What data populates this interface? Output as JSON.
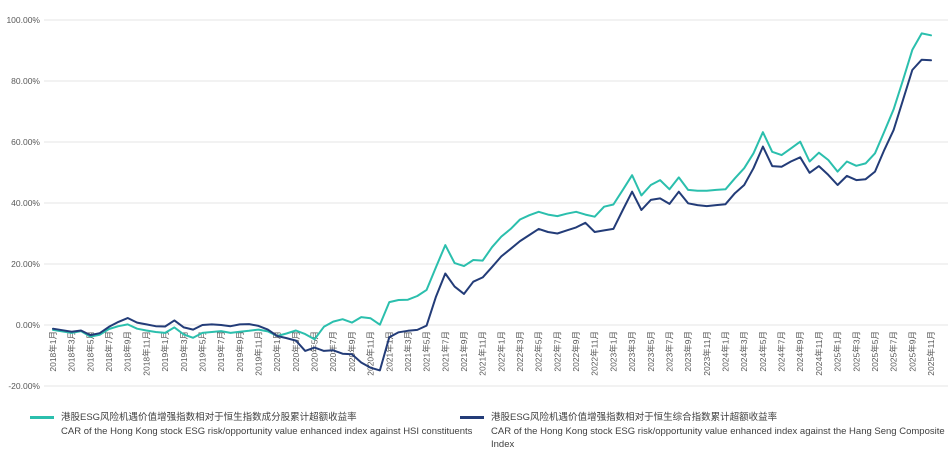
{
  "chart_data": {
    "type": "line",
    "title": "",
    "unit": "%",
    "ylim": [
      -20,
      100
    ],
    "grid": true,
    "grid_color": "#E4E4E4",
    "tick_color": "#595959",
    "legend_position": "bottom",
    "points_per_x_tick": 2,
    "y_ticks": [
      {
        "label": "100.00%",
        "value": 100
      },
      {
        "label": "80.00%",
        "value": 80
      },
      {
        "label": "60.00%",
        "value": 60
      },
      {
        "label": "40.00%",
        "value": 40
      },
      {
        "label": "20.00%",
        "value": 20
      },
      {
        "label": "0.00%",
        "value": 0
      },
      {
        "label": "-20.00%",
        "value": -20
      }
    ],
    "x_tick_labels": [
      "2018年1月",
      "2018年3月",
      "2018年5月",
      "2018年7月",
      "2018年9月",
      "2018年11月",
      "2019年1月",
      "2019年3月",
      "2019年5月",
      "2019年7月",
      "2019年9月",
      "2019年11月",
      "2020年1月",
      "2020年3月",
      "2020年5月",
      "2020年7月",
      "2020年9月",
      "2020年11月",
      "2021年1月",
      "2021年3月",
      "2021年5月",
      "2021年7月",
      "2021年9月",
      "2021年11月",
      "2022年1月",
      "2022年3月",
      "2022年5月",
      "2022年7月",
      "2022年9月",
      "2022年11月",
      "2023年1月",
      "2023年3月",
      "2023年5月",
      "2023年7月",
      "2023年9月",
      "2023年11月",
      "2024年1月",
      "2024年3月",
      "2024年5月",
      "2024年7月",
      "2024年9月",
      "2024年11月",
      "2025年1月",
      "2025年3月",
      "2025年5月",
      "2025年7月",
      "2025年9月",
      "2025年11月"
    ],
    "series": [
      {
        "name_zh": "港股ESG风险机遇价值增强指数相对于恒生指数成分股累计超额收益率",
        "name_en": "CAR of the Hong Kong stock ESG risk/opportunity value enhanced index against HSI constituents",
        "color": "#2BBFAD",
        "values": [
          -1.6,
          -2.1,
          -2.6,
          -2.0,
          -3.8,
          -3.2,
          -1.3,
          -0.4,
          0.2,
          -1.2,
          -1.8,
          -2.3,
          -2.6,
          -0.8,
          -3.1,
          -4.2,
          -2.6,
          -2.3,
          -2.0,
          -2.6,
          -2.2,
          -1.9,
          -1.5,
          -2.1,
          -3.6,
          -2.8,
          -1.8,
          -3.0,
          -4.7,
          -0.6,
          1.1,
          1.9,
          0.8,
          2.6,
          2.2,
          0.1,
          7.5,
          8.2,
          8.3,
          9.5,
          11.5,
          19.0,
          26.2,
          20.3,
          19.3,
          21.3,
          21.1,
          25.5,
          29.0,
          31.5,
          34.6,
          36.0,
          37.1,
          36.2,
          35.7,
          36.5,
          37.1,
          36.2,
          35.5,
          38.8,
          39.5,
          44.3,
          49.1,
          42.5,
          45.9,
          47.5,
          44.5,
          48.4,
          44.3,
          44.0,
          44.0,
          44.3,
          44.5,
          48.1,
          51.4,
          56.3,
          63.2,
          56.8,
          55.7,
          57.9,
          60.1,
          53.6,
          56.5,
          54.1,
          50.3,
          53.6,
          52.2,
          53.0,
          56.3,
          63.4,
          70.7,
          80.3,
          90.2,
          95.6,
          95.0
        ]
      },
      {
        "name_zh": "港股ESG风险机遇价值增强指数相对于恒生综合指数累计超额收益率",
        "name_en": "CAR of the Hong Kong stock ESG risk/opportunity value enhanced index against the Hang Seng Composite Index",
        "color": "#233C78",
        "values": [
          -1.2,
          -1.7,
          -2.2,
          -1.8,
          -3.3,
          -2.7,
          -0.6,
          1.0,
          2.3,
          0.8,
          0.2,
          -0.4,
          -0.5,
          1.5,
          -0.8,
          -1.5,
          0.0,
          0.2,
          0.0,
          -0.4,
          0.2,
          0.3,
          -0.3,
          -1.5,
          -3.6,
          -4.3,
          -5.1,
          -8.5,
          -7.4,
          -8.5,
          -8.3,
          -9.4,
          -9.6,
          -12.3,
          -14.0,
          -14.9,
          -4.0,
          -2.4,
          -1.9,
          -1.6,
          -0.2,
          9.3,
          16.9,
          12.6,
          10.2,
          14.2,
          15.6,
          19.0,
          22.5,
          25.0,
          27.5,
          29.5,
          31.5,
          30.5,
          30.0,
          31.0,
          32.0,
          33.5,
          30.5,
          31.0,
          31.5,
          37.7,
          43.7,
          37.7,
          41.0,
          41.5,
          39.7,
          43.7,
          39.9,
          39.3,
          39.0,
          39.3,
          39.6,
          43.2,
          45.9,
          51.4,
          58.5,
          52.1,
          51.9,
          53.6,
          55.0,
          49.9,
          52.1,
          49.2,
          45.9,
          48.9,
          47.5,
          47.8,
          50.3,
          57.4,
          63.9,
          73.8,
          83.6,
          87.0,
          86.8
        ]
      }
    ]
  }
}
